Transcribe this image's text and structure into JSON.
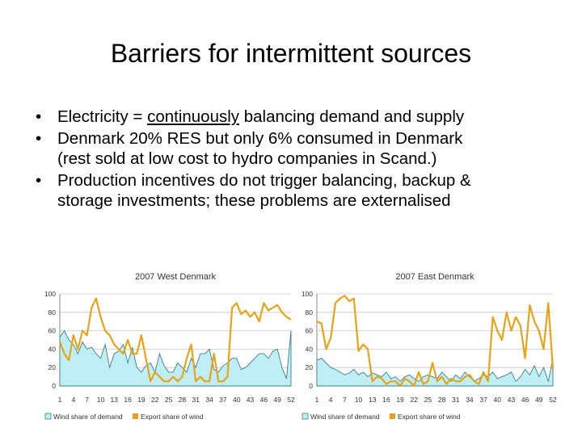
{
  "slide": {
    "title": "Barriers for intermittent sources",
    "bullets": [
      {
        "marker": "•",
        "pre": "Electricity = ",
        "underlined": "continuously",
        "post": " balancing demand and supply"
      },
      {
        "marker": "•",
        "line1": "Denmark 20% RES but only 6% consumed in Denmark",
        "line2": "(rest sold at low cost to hydro companies in Scand.)"
      },
      {
        "marker": "•",
        "line1": "Production incentives do not trigger balancing, backup &",
        "line2": "storage investments; these problems are externalised"
      }
    ]
  },
  "chart_data": [
    {
      "type": "area",
      "title": "2007 West Denmark",
      "ylim": [
        0,
        100
      ],
      "yticks": [
        "0",
        "20",
        "40",
        "60",
        "80",
        "100"
      ],
      "xticks": [
        "1",
        "4",
        "7",
        "10",
        "13",
        "16",
        "19",
        "22",
        "25",
        "28",
        "31",
        "34",
        "37",
        "40",
        "43",
        "46",
        "49",
        "52"
      ],
      "series": [
        {
          "name": "Wind share of demand",
          "type": "area",
          "color": "#bfeff5",
          "values": [
            53,
            60,
            50,
            45,
            35,
            48,
            40,
            42,
            35,
            30,
            45,
            20,
            35,
            38,
            45,
            25,
            42,
            20,
            15,
            22,
            25,
            15,
            35,
            22,
            15,
            15,
            25,
            20,
            15,
            30,
            20,
            35,
            35,
            40,
            18,
            15,
            22,
            25,
            30,
            30,
            18,
            20,
            25,
            30,
            35,
            35,
            30,
            38,
            40,
            20,
            8,
            60
          ]
        },
        {
          "name": "Export share of wind",
          "type": "line",
          "color": "#e8a317",
          "values": [
            48,
            35,
            28,
            55,
            40,
            60,
            55,
            85,
            95,
            75,
            60,
            55,
            45,
            40,
            35,
            50,
            35,
            35,
            55,
            30,
            5,
            15,
            10,
            5,
            5,
            10,
            5,
            10,
            30,
            45,
            5,
            10,
            5,
            5,
            35,
            5,
            5,
            10,
            85,
            90,
            78,
            82,
            75,
            80,
            70,
            90,
            82,
            85,
            88,
            80,
            75,
            72
          ]
        }
      ]
    },
    {
      "type": "area",
      "title": "2007 East Denmark",
      "ylim": [
        0,
        100
      ],
      "yticks": [
        "0",
        "20",
        "40",
        "60",
        "80",
        "100"
      ],
      "xticks": [
        "1",
        "4",
        "7",
        "10",
        "13",
        "16",
        "19",
        "22",
        "25",
        "28",
        "31",
        "34",
        "37",
        "40",
        "43",
        "46",
        "49",
        "52"
      ],
      "series": [
        {
          "name": "Wind share of demand",
          "type": "area",
          "color": "#bfeff5",
          "values": [
            28,
            30,
            25,
            20,
            18,
            15,
            12,
            14,
            18,
            12,
            15,
            10,
            14,
            12,
            10,
            15,
            8,
            10,
            5,
            10,
            12,
            8,
            5,
            10,
            12,
            10,
            8,
            15,
            10,
            5,
            12,
            8,
            15,
            10,
            5,
            8,
            12,
            10,
            15,
            8,
            10,
            12,
            15,
            5,
            10,
            18,
            12,
            22,
            10,
            20,
            5,
            30
          ]
        },
        {
          "name": "Export share of wind",
          "type": "line",
          "color": "#e8a317",
          "values": [
            70,
            68,
            40,
            52,
            90,
            95,
            98,
            92,
            95,
            38,
            45,
            40,
            5,
            10,
            8,
            2,
            5,
            5,
            0,
            8,
            5,
            0,
            15,
            2,
            5,
            25,
            5,
            10,
            2,
            8,
            5,
            5,
            10,
            12,
            5,
            2,
            15,
            5,
            75,
            60,
            50,
            80,
            60,
            75,
            65,
            30,
            88,
            70,
            60,
            40,
            90,
            18
          ]
        }
      ]
    }
  ]
}
